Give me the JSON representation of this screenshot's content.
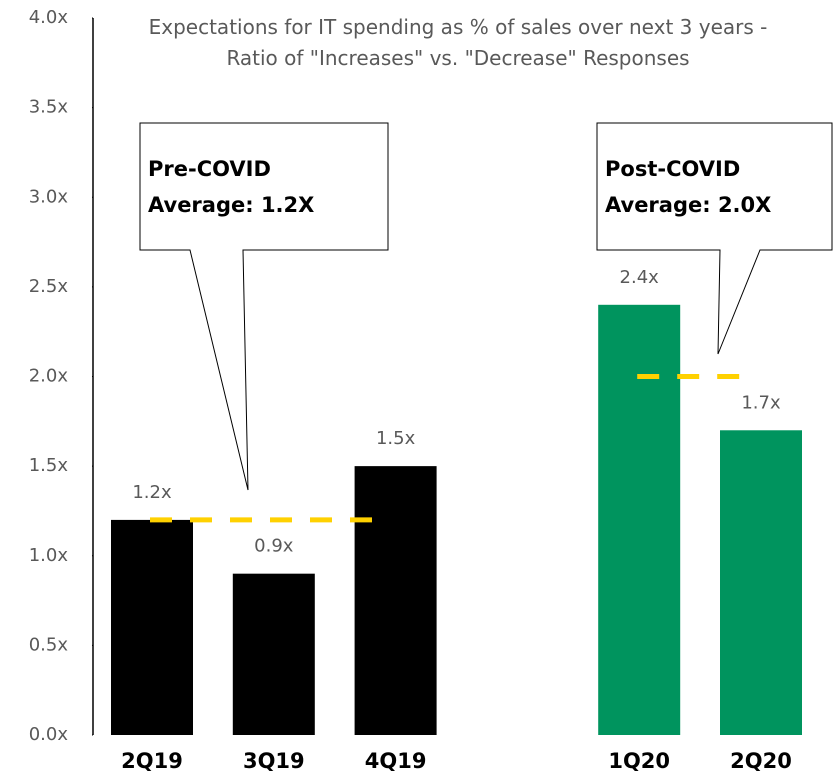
{
  "chart_data": {
    "type": "bar",
    "title": "Expectations for IT spending as % of sales over next 3 years - Ratio of \"Increases\" vs. \"Decrease\" Responses",
    "categories": [
      "2Q19",
      "3Q19",
      "4Q19",
      null,
      "1Q20",
      "2Q20"
    ],
    "values": [
      1.2,
      0.9,
      1.5,
      null,
      2.4,
      1.7
    ],
    "value_labels": [
      "1.2x",
      "0.9x",
      "1.5x",
      null,
      "2.4x",
      "1.7x"
    ],
    "colors": [
      "#000000",
      "#000000",
      "#000000",
      null,
      "#00945e",
      "#00945e"
    ],
    "ylim": [
      0,
      4
    ],
    "yticks": [
      {
        "value": 0,
        "label": "0.0x"
      },
      {
        "value": 0.5,
        "label": "0.5x"
      },
      {
        "value": 1,
        "label": "1.0x"
      },
      {
        "value": 1.5,
        "label": "1.5x"
      },
      {
        "value": 2,
        "label": "2.0x"
      },
      {
        "value": 2.5,
        "label": "2.5x"
      },
      {
        "value": 3,
        "label": "3.0x"
      },
      {
        "value": 3.5,
        "label": "3.5x"
      },
      {
        "value": 4,
        "label": "4.0x"
      }
    ],
    "grid": false,
    "reference_lines": [
      {
        "value": 1.2,
        "color": "#ffd100",
        "span": [
          0,
          2
        ],
        "annotation": [
          "Pre-COVID",
          "Average: 1.2X"
        ]
      },
      {
        "value": 2.0,
        "color": "#ffd100",
        "span": [
          4,
          5
        ],
        "annotation": [
          "Post-COVID",
          "Average: 2.0X"
        ]
      }
    ]
  }
}
